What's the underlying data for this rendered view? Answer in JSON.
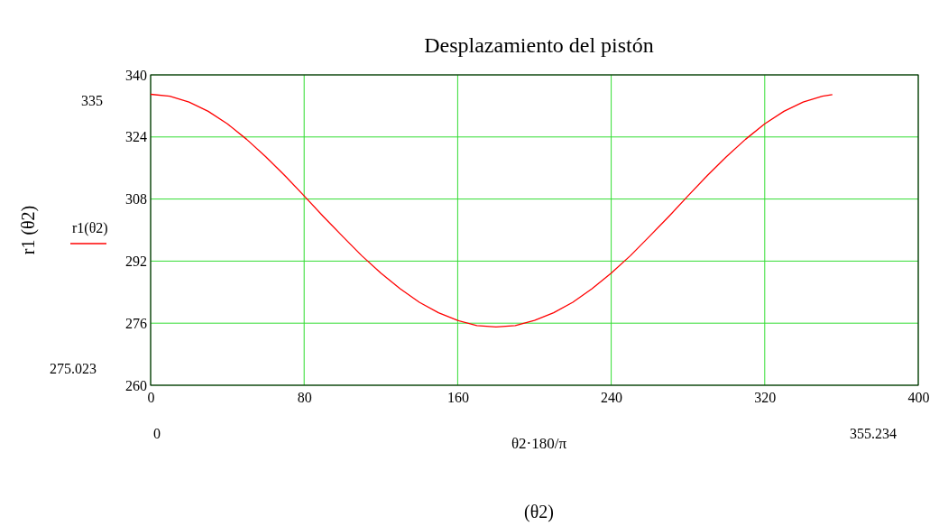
{
  "chart_data": {
    "type": "line",
    "title": "Desplazamiento del pistón",
    "xlabel": "θ2·180/π",
    "ylabel": "r1 (θ2)",
    "x": [
      0,
      10,
      20,
      30,
      40,
      50,
      60,
      70,
      80,
      90,
      100,
      110,
      120,
      130,
      140,
      150,
      160,
      170,
      180,
      190,
      200,
      210,
      220,
      230,
      240,
      250,
      260,
      270,
      280,
      290,
      300,
      310,
      320,
      330,
      340,
      350,
      355.234
    ],
    "series": [
      {
        "name": "r1(θ2)",
        "color": "#ff0000",
        "values": [
          335.0,
          334.5,
          333.0,
          330.6,
          327.4,
          323.4,
          318.9,
          314.0,
          308.8,
          303.5,
          298.4,
          293.4,
          288.9,
          284.9,
          281.4,
          278.7,
          276.7,
          275.4,
          275.023,
          275.4,
          276.7,
          278.7,
          281.4,
          284.9,
          288.9,
          293.4,
          298.4,
          303.5,
          308.8,
          314.0,
          318.9,
          323.4,
          327.4,
          330.6,
          333.0,
          334.5,
          334.9
        ]
      }
    ],
    "xlim": [
      0,
      400
    ],
    "xticks": [
      0,
      80,
      160,
      240,
      320,
      400
    ],
    "ylim": [
      260,
      340
    ],
    "yticks": [
      260,
      276,
      292,
      308,
      324,
      340
    ],
    "grid": true,
    "legend": "left",
    "line_style": "solid",
    "marker": "none",
    "annotations": [
      "335",
      "275.023",
      "0",
      "355.234",
      "(θ2)"
    ]
  }
}
